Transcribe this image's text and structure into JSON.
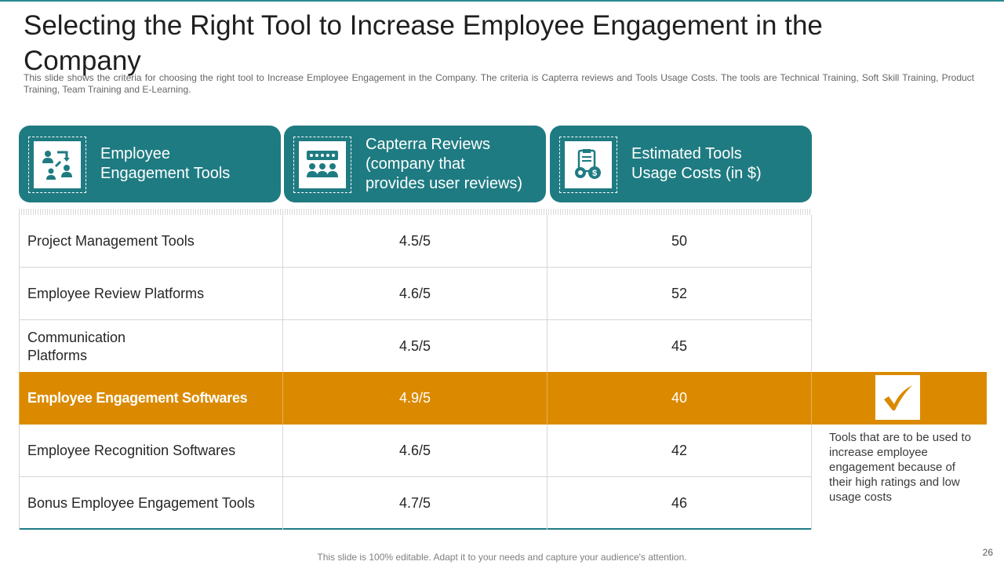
{
  "slide": {
    "title": "Selecting the Right Tool to Increase Employee Engagement in the Company",
    "subtitle": "This slide shows the criteria for choosing the right tool to Increase Employee Engagement in the Company. The criteria is Capterra reviews and Tools Usage Costs. The tools are Technical Training, Soft Skill Training, Product Training, Team Training and E-Learning.",
    "footer": "This slide is 100% editable. Adapt it to your needs and capture your audience's attention.",
    "page_number": "26"
  },
  "headers": [
    {
      "label": "Employee\nEngagement  Tools",
      "icon": "people-exchange-icon"
    },
    {
      "label": "Capterra Reviews\n(company that\nprovides user reviews)",
      "icon": "group-rating-icon"
    },
    {
      "label": "Estimated Tools\nUsage Costs (in $)",
      "icon": "cost-clipboard-icon"
    }
  ],
  "rows": [
    {
      "tool": "Project Management Tools",
      "rating": "4.5/5",
      "cost": "50"
    },
    {
      "tool": "Employee Review Platforms",
      "rating": "4.6/5",
      "cost": "52"
    },
    {
      "tool": "Communication\nPlatforms",
      "rating": "4.5/5",
      "cost": "45"
    },
    {
      "tool": "Employee Engagement Softwares",
      "rating": "4.9/5",
      "cost": "40",
      "highlighted": true
    },
    {
      "tool": "Employee Recognition Softwares",
      "rating": "4.6/5",
      "cost": "42"
    },
    {
      "tool": "Bonus Employee Engagement Tools",
      "rating": "4.7/5",
      "cost": "46"
    }
  ],
  "note": "Tools that are to be used to increase employee engagement  because of their high ratings and low usage costs",
  "colors": {
    "teal": "#1f7b82",
    "highlight": "#db8a00"
  }
}
